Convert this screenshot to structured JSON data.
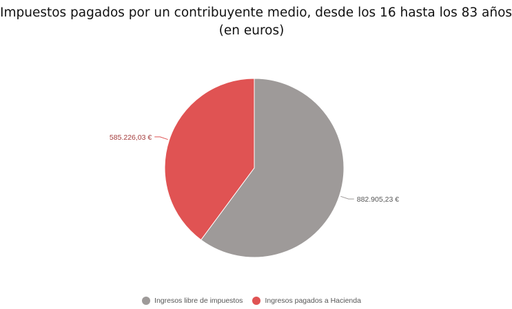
{
  "title_line1": "Impuestos pagados por un contribuyente medio, desde los 16 hasta los 83 años",
  "title_line2": "(en euros)",
  "chart_data": {
    "type": "pie",
    "start_angle": "top, clockwise",
    "slices": [
      {
        "name": "Ingresos libre de impuestos",
        "value": 882905.23,
        "label": "882.905,23 €",
        "color": "#9e9a99",
        "label_color": "#555555"
      },
      {
        "name": "Ingresos pagados a Hacienda",
        "value": 585226.03,
        "label": "585.226,03 €",
        "color": "#e05353",
        "label_color": "#a33a3a"
      }
    ],
    "legend_position": "bottom"
  }
}
